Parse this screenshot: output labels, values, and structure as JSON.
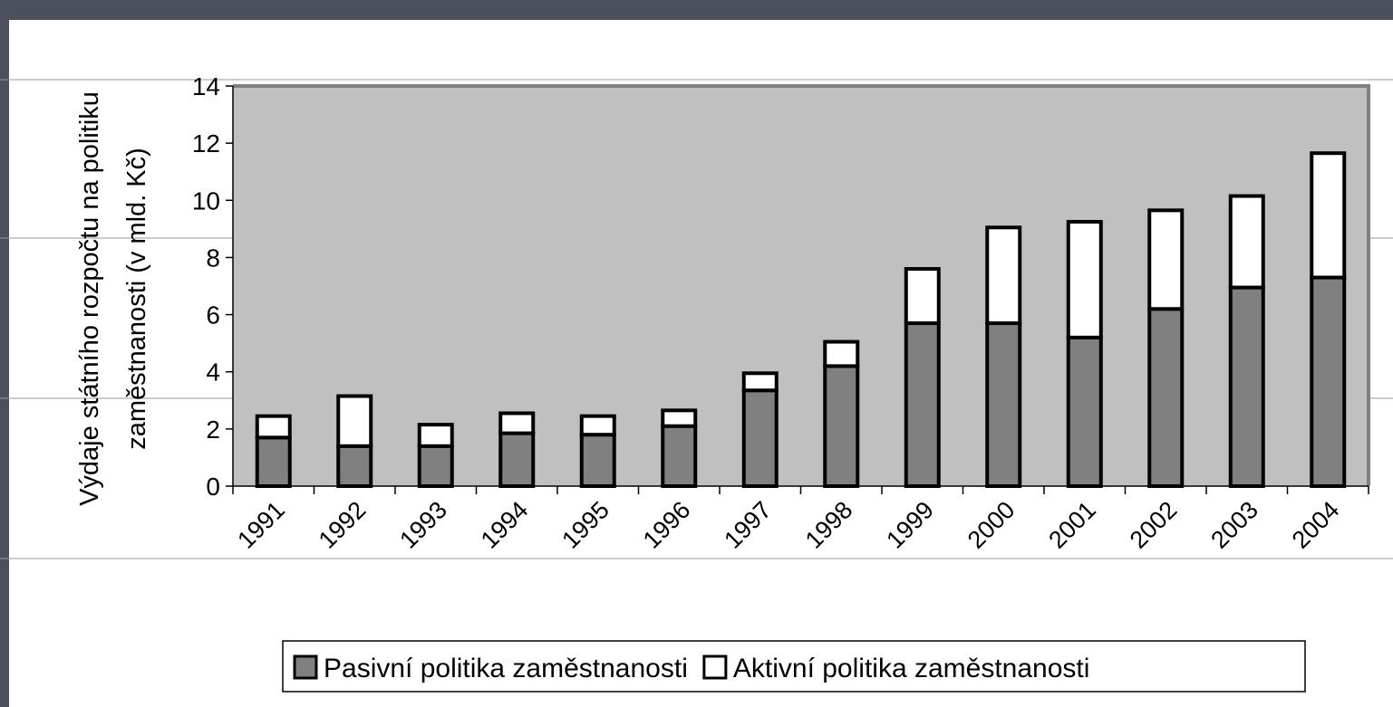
{
  "chart_data": {
    "type": "stacked_bar",
    "ylabel": [
      "Výdaje státního rozpočtu na politiku",
      "zaměstnanosti (v mld. Kč)"
    ],
    "categories": [
      "1991",
      "1992",
      "1993",
      "1994",
      "1995",
      "1996",
      "1997",
      "1998",
      "1999",
      "2000",
      "2001",
      "2002",
      "2003",
      "2004"
    ],
    "series": [
      {
        "name": "Pasivní politika zaměstnanosti",
        "color": "#808080",
        "values": [
          1.7,
          1.4,
          1.4,
          1.85,
          1.8,
          2.1,
          3.35,
          4.2,
          5.7,
          5.7,
          5.2,
          6.2,
          6.95,
          7.3
        ]
      },
      {
        "name": "Aktivní politika zaměstnanosti",
        "color": "#ffffff",
        "values": [
          0.75,
          1.75,
          0.75,
          0.7,
          0.65,
          0.55,
          0.6,
          0.85,
          1.9,
          3.35,
          4.05,
          3.45,
          3.2,
          4.35
        ]
      }
    ],
    "ylim": [
      0,
      14
    ],
    "yticks": [
      0,
      2,
      4,
      6,
      8,
      10,
      12,
      14
    ],
    "plot_background": "#c0c0c0"
  }
}
